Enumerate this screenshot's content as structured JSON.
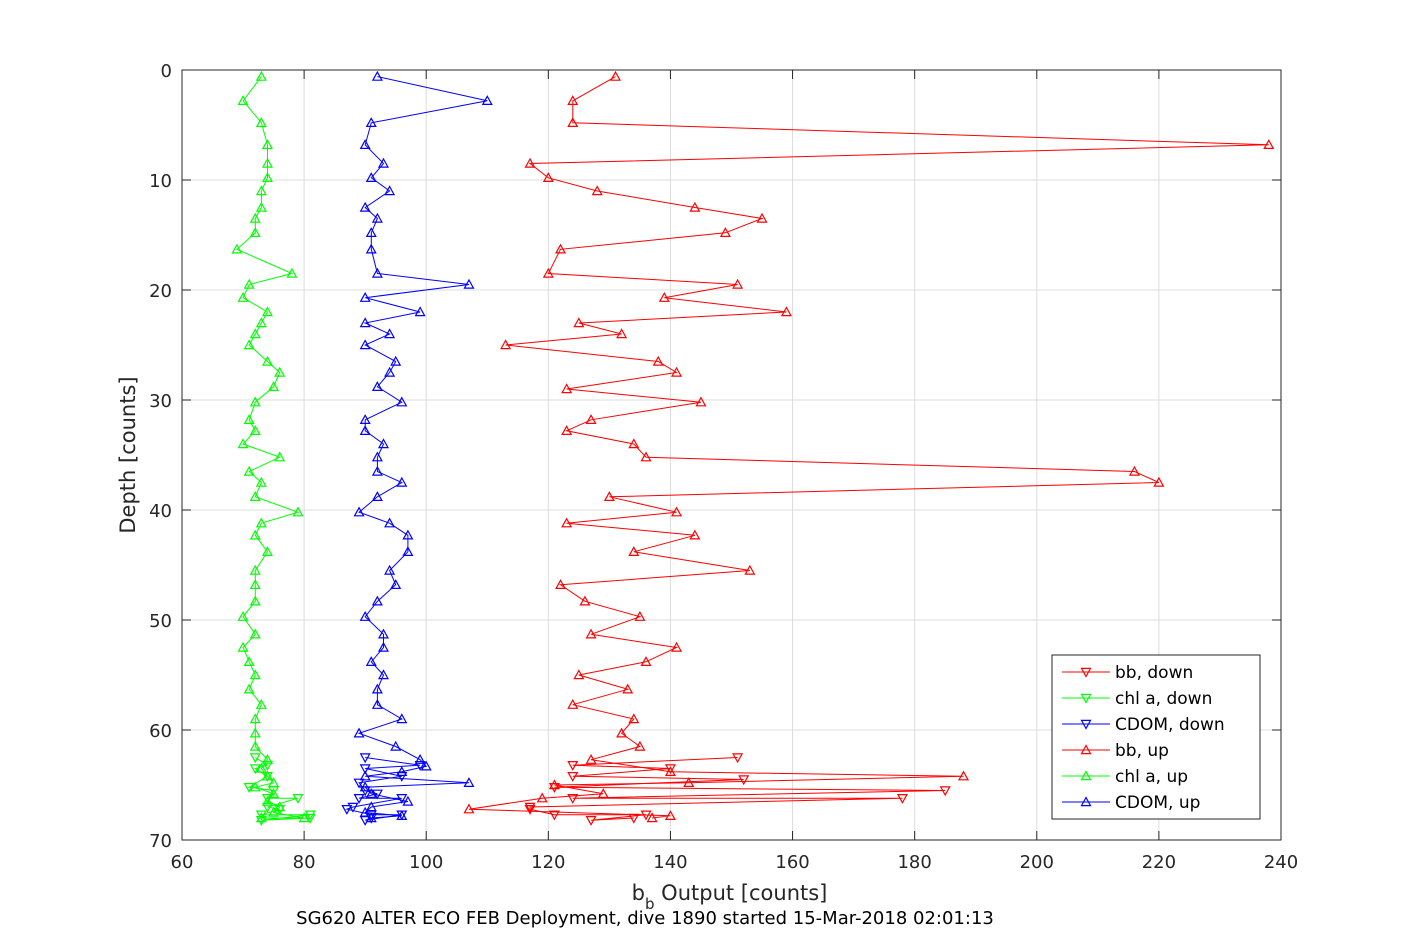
{
  "chart_data": {
    "type": "line",
    "xlabel_main": "b",
    "xlabel_sub": "b",
    "xlabel_rest": " Output [counts]",
    "ylabel": "Depth [counts]",
    "footer": "SG620 ALTER ECO FEB Deployment, dive 1890 started 15-Mar-2018 02:01:13",
    "xlim": [
      60,
      240
    ],
    "ylim": [
      0,
      70
    ],
    "y_reversed": true,
    "grid": true,
    "legend_position": "bottom-right",
    "xticks": [
      "60",
      "80",
      "100",
      "120",
      "140",
      "160",
      "180",
      "200",
      "220",
      "240"
    ],
    "yticks": [
      "0",
      "10",
      "20",
      "30",
      "40",
      "50",
      "60",
      "70"
    ],
    "series": [
      {
        "name": "bb, down",
        "color": "#ff0000",
        "marker": "triangle-down",
        "points": [
          [
            151,
            62.5
          ],
          [
            124,
            63.2
          ],
          [
            140,
            63.5
          ],
          [
            124,
            64.2
          ],
          [
            152,
            64.5
          ],
          [
            121,
            65.2
          ],
          [
            185,
            65.5
          ],
          [
            124,
            66.2
          ],
          [
            178,
            66.2
          ],
          [
            117,
            67
          ],
          [
            117,
            67.2
          ],
          [
            121,
            67.7
          ],
          [
            136,
            67.7
          ],
          [
            127,
            68.2
          ],
          [
            134,
            68
          ]
        ]
      },
      {
        "name": "chl a, down",
        "color": "#00ff00",
        "marker": "triangle-down",
        "points": [
          [
            72,
            62.5
          ],
          [
            74,
            63.2
          ],
          [
            72,
            63.5
          ],
          [
            74,
            64.2
          ],
          [
            71,
            65.2
          ],
          [
            75,
            65.5
          ],
          [
            74,
            66.2
          ],
          [
            79,
            66.2
          ],
          [
            74,
            67
          ],
          [
            76,
            67.2
          ],
          [
            73,
            67.7
          ],
          [
            81,
            67.7
          ],
          [
            73,
            68.2
          ],
          [
            81,
            68
          ]
        ]
      },
      {
        "name": "CDOM, down",
        "color": "#0000ff",
        "marker": "triangle-down",
        "points": [
          [
            90,
            62.5
          ],
          [
            99,
            63.2
          ],
          [
            90,
            63.5
          ],
          [
            96,
            64.2
          ],
          [
            89,
            64.8
          ],
          [
            90,
            65.5
          ],
          [
            92,
            65.8
          ],
          [
            89,
            66.2
          ],
          [
            96,
            66.2
          ],
          [
            88,
            67
          ],
          [
            87,
            67.2
          ],
          [
            91,
            67.7
          ],
          [
            96,
            67.7
          ],
          [
            90,
            68.2
          ],
          [
            91,
            68
          ]
        ]
      },
      {
        "name": "bb, up",
        "color": "#ff0000",
        "marker": "triangle-up",
        "points": [
          [
            131,
            0.6
          ],
          [
            124,
            2.8
          ],
          [
            124,
            4.8
          ],
          [
            238,
            6.8
          ],
          [
            117,
            8.5
          ],
          [
            120,
            9.8
          ],
          [
            128,
            11
          ],
          [
            144,
            12.5
          ],
          [
            155,
            13.5
          ],
          [
            149,
            14.8
          ],
          [
            122,
            16.3
          ],
          [
            120,
            18.5
          ],
          [
            151,
            19.5
          ],
          [
            139,
            20.7
          ],
          [
            159,
            22
          ],
          [
            125,
            23
          ],
          [
            132,
            24
          ],
          [
            113,
            25
          ],
          [
            138,
            26.5
          ],
          [
            141,
            27.5
          ],
          [
            123,
            29
          ],
          [
            145,
            30.2
          ],
          [
            127,
            31.8
          ],
          [
            123,
            32.8
          ],
          [
            134,
            34
          ],
          [
            136,
            35.2
          ],
          [
            216,
            36.5
          ],
          [
            220,
            37.5
          ],
          [
            130,
            38.8
          ],
          [
            141,
            40.2
          ],
          [
            123,
            41.2
          ],
          [
            144,
            42.3
          ],
          [
            134,
            43.8
          ],
          [
            153,
            45.5
          ],
          [
            122,
            46.8
          ],
          [
            126,
            48.3
          ],
          [
            135,
            49.7
          ],
          [
            127,
            51.3
          ],
          [
            141,
            52.5
          ],
          [
            136,
            53.8
          ],
          [
            125,
            55
          ],
          [
            133,
            56.3
          ],
          [
            124,
            57.7
          ],
          [
            134,
            59
          ],
          [
            132,
            60.3
          ],
          [
            135,
            61.5
          ],
          [
            127,
            62.7
          ],
          [
            140,
            63.8
          ],
          [
            188,
            64.2
          ],
          [
            143,
            64.8
          ],
          [
            121,
            65
          ],
          [
            129,
            65.8
          ],
          [
            119,
            66.2
          ],
          [
            107,
            67.2
          ],
          [
            140,
            67.8
          ],
          [
            137,
            68
          ]
        ]
      },
      {
        "name": "chl a, up",
        "color": "#00ff00",
        "marker": "triangle-up",
        "points": [
          [
            73,
            0.6
          ],
          [
            70,
            2.8
          ],
          [
            73,
            4.8
          ],
          [
            74,
            6.8
          ],
          [
            74,
            8.5
          ],
          [
            74,
            9.8
          ],
          [
            73,
            11
          ],
          [
            73,
            12.5
          ],
          [
            72,
            13.5
          ],
          [
            72,
            14.8
          ],
          [
            69,
            16.3
          ],
          [
            78,
            18.5
          ],
          [
            71,
            19.5
          ],
          [
            70,
            20.7
          ],
          [
            74,
            22
          ],
          [
            73,
            23
          ],
          [
            72,
            24
          ],
          [
            71,
            25
          ],
          [
            74,
            26.5
          ],
          [
            76,
            27.5
          ],
          [
            75,
            28.8
          ],
          [
            72,
            30.2
          ],
          [
            71,
            31.8
          ],
          [
            72,
            32.8
          ],
          [
            70,
            34
          ],
          [
            76,
            35.2
          ],
          [
            71,
            36.5
          ],
          [
            73,
            37.5
          ],
          [
            72,
            38.8
          ],
          [
            79,
            40.2
          ],
          [
            73,
            41.2
          ],
          [
            72,
            42.3
          ],
          [
            74,
            43.8
          ],
          [
            72,
            45.5
          ],
          [
            72,
            46.8
          ],
          [
            72,
            48.3
          ],
          [
            70,
            49.7
          ],
          [
            72,
            51.3
          ],
          [
            70,
            52.5
          ],
          [
            71,
            53.8
          ],
          [
            72,
            55
          ],
          [
            71,
            56.3
          ],
          [
            73,
            57.7
          ],
          [
            72,
            59
          ],
          [
            72,
            60.3
          ],
          [
            72,
            61.5
          ],
          [
            74,
            62.7
          ],
          [
            73,
            63.5
          ],
          [
            74,
            64.2
          ],
          [
            75,
            64.8
          ],
          [
            72,
            65.2
          ],
          [
            75,
            65.8
          ],
          [
            74,
            66.5
          ],
          [
            76,
            67
          ],
          [
            75,
            67.5
          ],
          [
            80,
            68
          ],
          [
            73,
            68
          ]
        ]
      },
      {
        "name": "CDOM, up",
        "color": "#0000ff",
        "marker": "triangle-up",
        "points": [
          [
            92,
            0.6
          ],
          [
            110,
            2.8
          ],
          [
            91,
            4.8
          ],
          [
            90,
            6.8
          ],
          [
            93,
            8.5
          ],
          [
            91,
            9.8
          ],
          [
            94,
            11
          ],
          [
            90,
            12.5
          ],
          [
            92,
            13.5
          ],
          [
            91,
            14.8
          ],
          [
            91,
            16.3
          ],
          [
            92,
            18.5
          ],
          [
            107,
            19.5
          ],
          [
            90,
            20.7
          ],
          [
            99,
            22
          ],
          [
            90,
            23
          ],
          [
            94,
            24
          ],
          [
            90,
            25
          ],
          [
            95,
            26.5
          ],
          [
            94,
            27.5
          ],
          [
            92,
            28.8
          ],
          [
            96,
            30.2
          ],
          [
            90,
            31.8
          ],
          [
            90,
            32.8
          ],
          [
            93,
            34
          ],
          [
            92,
            35.2
          ],
          [
            92,
            36.5
          ],
          [
            96,
            37.5
          ],
          [
            92,
            38.8
          ],
          [
            89,
            40.2
          ],
          [
            94,
            41.2
          ],
          [
            97,
            42.3
          ],
          [
            97,
            43.8
          ],
          [
            94,
            45.5
          ],
          [
            95,
            46.8
          ],
          [
            92,
            48.3
          ],
          [
            90,
            49.7
          ],
          [
            93,
            51.3
          ],
          [
            93,
            52.5
          ],
          [
            91,
            53.8
          ],
          [
            93,
            55
          ],
          [
            92,
            56.3
          ],
          [
            92,
            57.7
          ],
          [
            96,
            59
          ],
          [
            89,
            60.3
          ],
          [
            95,
            61.5
          ],
          [
            99,
            62.7
          ],
          [
            100,
            63.3
          ],
          [
            96,
            63.8
          ],
          [
            90,
            64.2
          ],
          [
            107,
            64.8
          ],
          [
            90,
            65.2
          ],
          [
            91,
            65.8
          ],
          [
            97,
            66.5
          ],
          [
            91,
            67
          ],
          [
            90,
            67.5
          ],
          [
            96,
            67.8
          ],
          [
            91,
            68
          ]
        ]
      }
    ]
  }
}
